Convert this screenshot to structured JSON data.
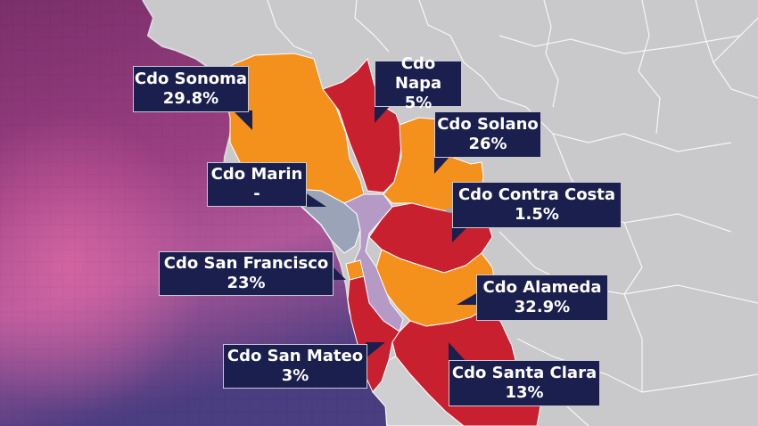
{
  "map": {
    "legend_colors": {
      "high": "#f4911c",
      "low": "#c8202e",
      "no_data": "#9aa3b8"
    },
    "counties": [
      {
        "key": "sonoma",
        "name": "Cdo Sonoma",
        "value": "29.8%",
        "color": "#f4911c"
      },
      {
        "key": "napa",
        "name": "Cdo Napa",
        "value": "5%",
        "color": "#c8202e"
      },
      {
        "key": "solano",
        "name": "Cdo Solano",
        "value": "26%",
        "color": "#f4911c"
      },
      {
        "key": "marin",
        "name": "Cdo Marin",
        "value": "-",
        "color": "#9aa3b8"
      },
      {
        "key": "contra_costa",
        "name": "Cdo Contra Costa",
        "value": "1.5%",
        "color": "#c8202e"
      },
      {
        "key": "san_francisco",
        "name": "Cdo San Francisco",
        "value": "23%",
        "color": "#f4911c"
      },
      {
        "key": "alameda",
        "name": "Cdo Alameda",
        "value": "32.9%",
        "color": "#f4911c"
      },
      {
        "key": "san_mateo",
        "name": "Cdo San Mateo",
        "value": "3%",
        "color": "#c8202e"
      },
      {
        "key": "santa_clara",
        "name": "Cdo Santa Clara",
        "value": "13%",
        "color": "#c8202e"
      }
    ]
  }
}
